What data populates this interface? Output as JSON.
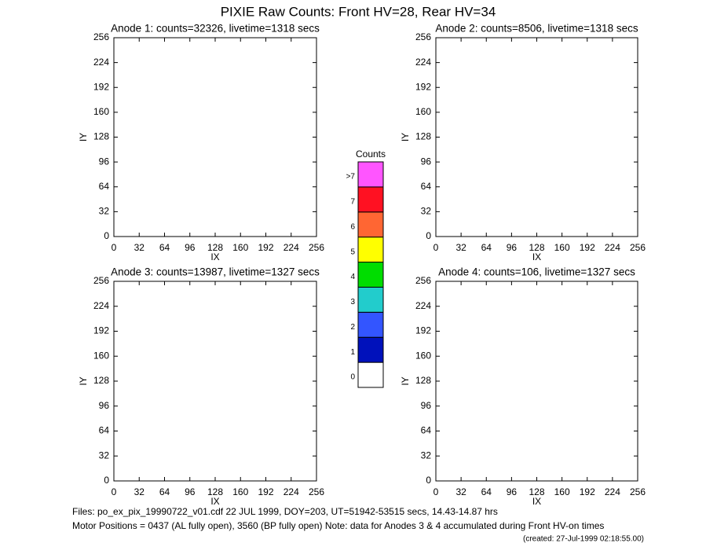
{
  "title": "PIXIE Raw Counts:  Front HV=28, Rear HV=34",
  "chart_data": [
    {
      "type": "heatmap",
      "title": "Anode 1: counts=32326, livetime=1318 secs",
      "xlabel": "IX",
      "ylabel": "IY",
      "xlim": [
        0,
        256
      ],
      "ylim": [
        0,
        256
      ],
      "xticks": [
        0,
        32,
        64,
        96,
        128,
        160,
        192,
        224,
        256
      ],
      "yticks": [
        0,
        32,
        64,
        96,
        128,
        160,
        192,
        224,
        256
      ]
    },
    {
      "type": "heatmap",
      "title": "Anode 2: counts=8506, livetime=1318 secs",
      "xlabel": "IX",
      "ylabel": "IY",
      "xlim": [
        0,
        256
      ],
      "ylim": [
        0,
        256
      ],
      "xticks": [
        0,
        32,
        64,
        96,
        128,
        160,
        192,
        224,
        256
      ],
      "yticks": [
        0,
        32,
        64,
        96,
        128,
        160,
        192,
        224,
        256
      ]
    },
    {
      "type": "heatmap",
      "title": "Anode 3: counts=13987, livetime=1327 secs",
      "xlabel": "IX",
      "ylabel": "IY",
      "xlim": [
        0,
        256
      ],
      "ylim": [
        0,
        256
      ],
      "xticks": [
        0,
        32,
        64,
        96,
        128,
        160,
        192,
        224,
        256
      ],
      "yticks": [
        0,
        32,
        64,
        96,
        128,
        160,
        192,
        224,
        256
      ]
    },
    {
      "type": "heatmap",
      "title": "Anode 4: counts=106, livetime=1327 secs",
      "xlabel": "IX",
      "ylabel": "IY",
      "xlim": [
        0,
        256
      ],
      "ylim": [
        0,
        256
      ],
      "xticks": [
        0,
        32,
        64,
        96,
        128,
        160,
        192,
        224,
        256
      ],
      "yticks": [
        0,
        32,
        64,
        96,
        128,
        160,
        192,
        224,
        256
      ]
    }
  ],
  "colorbar": {
    "title": "Counts",
    "levels": [
      {
        "label": "0",
        "color": "#ffffff"
      },
      {
        "label": "1",
        "color": "#0011bb"
      },
      {
        "label": "2",
        "color": "#3355ff"
      },
      {
        "label": "3",
        "color": "#22cccc"
      },
      {
        "label": "4",
        "color": "#00dd00"
      },
      {
        "label": "5",
        "color": "#ffff00"
      },
      {
        "label": "6",
        "color": "#ff6633"
      },
      {
        "label": "7",
        "color": "#ff1122"
      },
      {
        "label": ">7",
        "color": "#ff55ff"
      }
    ]
  },
  "footer": [
    "Files: po_ex_pix_19990722_v01.cdf    22 JUL 1999, DOY=203, UT=51942-53515 secs, 14.43-14.87 hrs",
    "Motor Positions = 0437 (AL fully open), 3560 (BP fully open)    Note: data for Anodes 3 & 4 accumulated during Front HV-on times",
    "(created: 27-Jul-1999 02:18:55.00)"
  ]
}
